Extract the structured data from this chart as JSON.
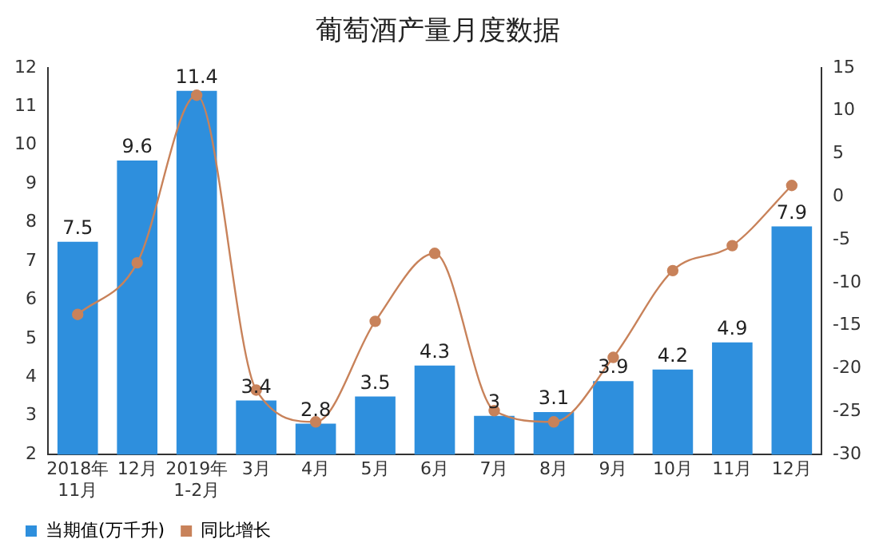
{
  "chart_data": {
    "type": "bar",
    "title": "葡萄酒产量月度数据",
    "categories": [
      "2018年\n11月",
      "12月",
      "2019年\n1-2月",
      "3月",
      "4月",
      "5月",
      "6月",
      "7月",
      "8月",
      "9月",
      "10月",
      "11月",
      "12月"
    ],
    "series": [
      {
        "name": "当期值(万千升)",
        "color": "#2e8fdd",
        "values": [
          7.5,
          9.6,
          11.4,
          3.4,
          2.8,
          3.5,
          4.3,
          3,
          3.1,
          3.9,
          4.2,
          4.9,
          7.9
        ],
        "value_labels": [
          "7.5",
          "9.6",
          "11.4",
          "3.4",
          "2.8",
          "3.5",
          "4.3",
          "3",
          "3.1",
          "3.9",
          "4.2",
          "4.9",
          "7.9"
        ]
      },
      {
        "name": "同比增长",
        "type": "line",
        "axis": "y2",
        "color": "#c8825a",
        "values": [
          -13.7,
          -7.7,
          11.8,
          -22.5,
          -26.2,
          -14.5,
          -6.6,
          -24.9,
          -26.2,
          -18.7,
          -8.6,
          -5.7,
          1.3
        ]
      }
    ],
    "ylim": [
      2,
      12
    ],
    "yticks": [
      2,
      3,
      4,
      5,
      6,
      7,
      8,
      9,
      10,
      11,
      12
    ],
    "y2lim": [
      -30,
      15
    ],
    "y2ticks": [
      -30,
      -25,
      -20,
      -15,
      -10,
      -5,
      0,
      5,
      10,
      15
    ],
    "grid": false,
    "legend": "bottom left",
    "marker": "circle",
    "line_style": "solid"
  }
}
